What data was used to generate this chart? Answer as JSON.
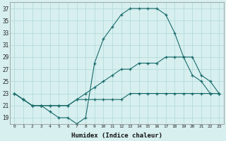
{
  "title": "",
  "xlabel": "Humidex (Indice chaleur)",
  "ylabel": "",
  "background_color": "#d7efef",
  "line_color": "#1a6b6b",
  "grid_color": "#b0d8d8",
  "x": [
    0,
    1,
    2,
    3,
    4,
    5,
    6,
    7,
    8,
    9,
    10,
    11,
    12,
    13,
    14,
    15,
    16,
    17,
    18,
    19,
    20,
    21,
    22,
    23
  ],
  "y_max": [
    23,
    22,
    21,
    21,
    20,
    19,
    19,
    18,
    19,
    28,
    32,
    34,
    36,
    37,
    37,
    37,
    37,
    36,
    33,
    29,
    26,
    25,
    23,
    23
  ],
  "y_mean": [
    23,
    22,
    21,
    21,
    21,
    21,
    21,
    22,
    23,
    24,
    25,
    26,
    27,
    27,
    28,
    28,
    28,
    29,
    29,
    29,
    29,
    26,
    25,
    23
  ],
  "y_min": [
    23,
    22,
    21,
    21,
    21,
    21,
    21,
    22,
    22,
    22,
    22,
    22,
    22,
    23,
    23,
    23,
    23,
    23,
    23,
    23,
    23,
    23,
    23,
    23
  ],
  "xlim": [
    -0.5,
    23.5
  ],
  "ylim": [
    18,
    38
  ],
  "yticks": [
    19,
    21,
    23,
    25,
    27,
    29,
    31,
    33,
    35,
    37
  ],
  "xticks": [
    0,
    1,
    2,
    3,
    4,
    5,
    6,
    7,
    8,
    9,
    10,
    11,
    12,
    13,
    14,
    15,
    16,
    17,
    18,
    19,
    20,
    21,
    22,
    23
  ]
}
